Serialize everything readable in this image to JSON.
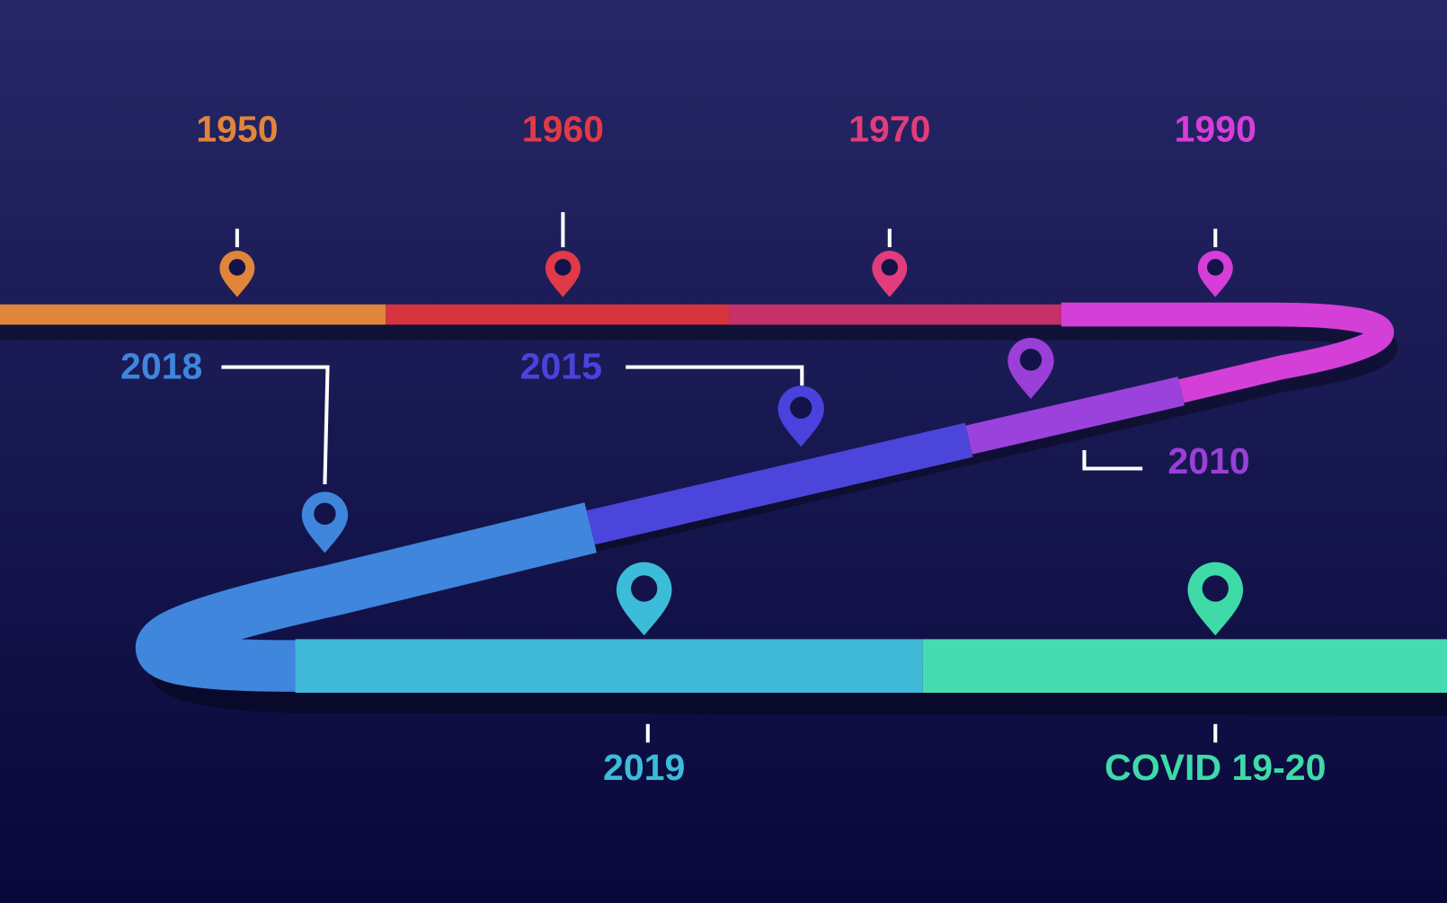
{
  "milestones": [
    {
      "label": "1950",
      "color": "#e0853a"
    },
    {
      "label": "1960",
      "color": "#e03a48"
    },
    {
      "label": "1970",
      "color": "#e03d7a"
    },
    {
      "label": "1990",
      "color": "#d63ed8"
    },
    {
      "label": "2010",
      "color": "#9a3fd8"
    },
    {
      "label": "2015",
      "color": "#4a42dc"
    },
    {
      "label": "2018",
      "color": "#3f85dc"
    },
    {
      "label": "2019",
      "color": "#3cbcd8"
    },
    {
      "label": "COVID 19-20",
      "color": "#3edaa8"
    }
  ]
}
